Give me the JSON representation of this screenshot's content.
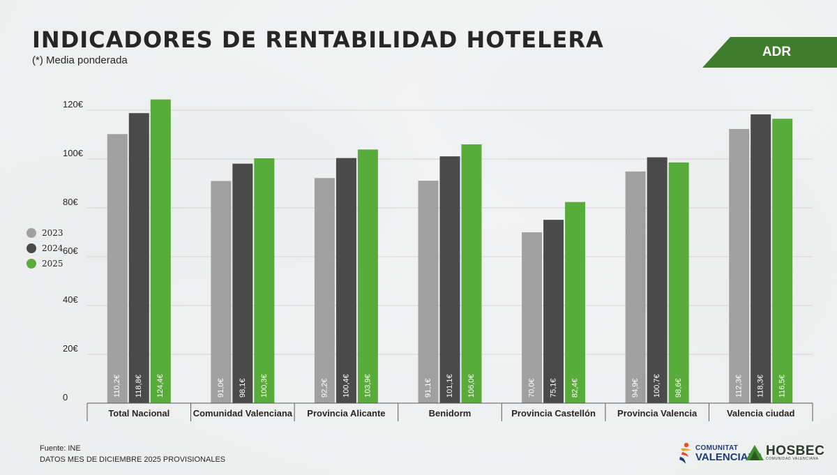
{
  "header": {
    "title": "INDICADORES DE RENTABILIDAD HOTELERA",
    "subtitle": "(*) Media ponderada",
    "tag": "ADR"
  },
  "footer": {
    "source": "Fuente: INE",
    "note": "DATOS MES DE DICIEMBRE 2025 PROVISIONALES"
  },
  "logos": {
    "cv_line1": "COMUNITAT",
    "cv_line2": "VALENCIANA",
    "hosbec_name": "HOSBEC",
    "hosbec_sub": "COMUNIDAD VALENCIANA"
  },
  "colors": {
    "s2023": "#a0a0a0",
    "s2024": "#4a4a4a",
    "s2025": "#58ac3a",
    "accent": "#3f7d2d"
  },
  "chart_data": {
    "type": "bar",
    "title": "INDICADORES DE RENTABILIDAD HOTELERA",
    "xlabel": "",
    "ylabel": "",
    "ylim": [
      0,
      120
    ],
    "yticks": [
      0,
      20,
      40,
      60,
      80,
      100,
      120
    ],
    "ytick_labels": [
      "0",
      "20€",
      "40€",
      "60€",
      "80€",
      "100€",
      "120€"
    ],
    "grid": true,
    "legend_position": "left",
    "categories": [
      "Total Nacional",
      "Comunidad Valenciana",
      "Provincia Alicante",
      "Benidorm",
      "Provincia Castellón",
      "Provincia Valencia",
      "Valencia ciudad"
    ],
    "series": [
      {
        "name": "2023",
        "values": [
          110.2,
          91.0,
          92.2,
          91.1,
          70.0,
          94.9,
          112.3
        ],
        "labels": [
          "110,2€",
          "91,0€",
          "92,2€",
          "91,1€",
          "70,0€",
          "94,9€",
          "112,3€"
        ]
      },
      {
        "name": "2024",
        "values": [
          118.8,
          98.1,
          100.4,
          101.1,
          75.1,
          100.7,
          118.3
        ],
        "labels": [
          "118,8€",
          "98,1€",
          "100,4€",
          "101,1€",
          "75,1€",
          "100,7€",
          "118,3€"
        ]
      },
      {
        "name": "2025",
        "values": [
          124.4,
          100.3,
          103.9,
          106.0,
          82.4,
          98.6,
          116.5
        ],
        "labels": [
          "124,4€",
          "100,3€",
          "103,9€",
          "106,0€",
          "82,4€",
          "98,6€",
          "116,5€"
        ]
      }
    ]
  }
}
